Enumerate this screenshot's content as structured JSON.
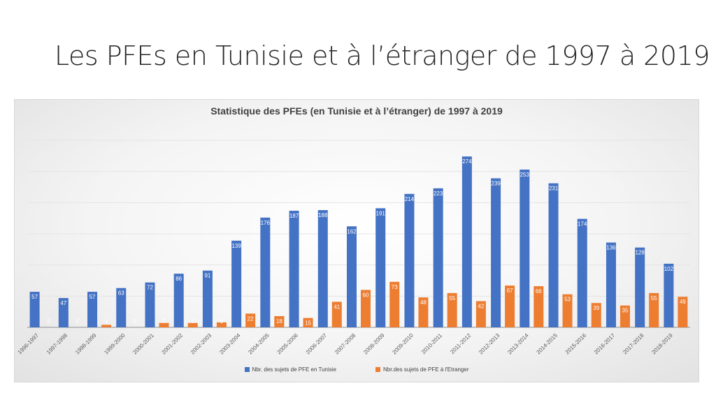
{
  "slide": {
    "title": "Les PFEs en Tunisie et à l’étranger de 1997 à 2019"
  },
  "colors": {
    "tunisie": "#4472c4",
    "etranger": "#ed7d31"
  },
  "chart_data": {
    "type": "bar",
    "title": "Statistique des PFEs (en Tunisie et à l’étranger) de 1997 à 2019",
    "xlabel": "",
    "ylabel": "",
    "ylim": [
      0,
      300
    ],
    "grid": true,
    "legend_position": "bottom",
    "categories": [
      "1996-1997",
      "1997-1998",
      "1998-1999",
      "1999-2000",
      "2000-2001",
      "2001-2002",
      "2002-2003",
      "2003-2004",
      "2004-2005",
      "2005-2006",
      "2006-2007",
      "2007-2008",
      "2008-2009",
      "2009-2010",
      "2010-2011",
      "2011-2012",
      "2012-2013",
      "2013-2014",
      "2014-2015",
      "2015-2016",
      "2016-2017",
      "2017-2018",
      "2018-2019"
    ],
    "series": [
      {
        "name": "Nbr. des sujets de PFE en Tunisie",
        "values": [
          57,
          47,
          57,
          63,
          72,
          86,
          91,
          139,
          176,
          187,
          188,
          162,
          191,
          214,
          223,
          274,
          239,
          253,
          231,
          174,
          136,
          128,
          102
        ]
      },
      {
        "name": "Nbr.des sujets de PFE à l'Etranger",
        "values": [
          0,
          0,
          4,
          0,
          7,
          7,
          8,
          22,
          18,
          15,
          41,
          60,
          73,
          48,
          55,
          42,
          67,
          66,
          53,
          39,
          35,
          55,
          49
        ]
      }
    ]
  }
}
